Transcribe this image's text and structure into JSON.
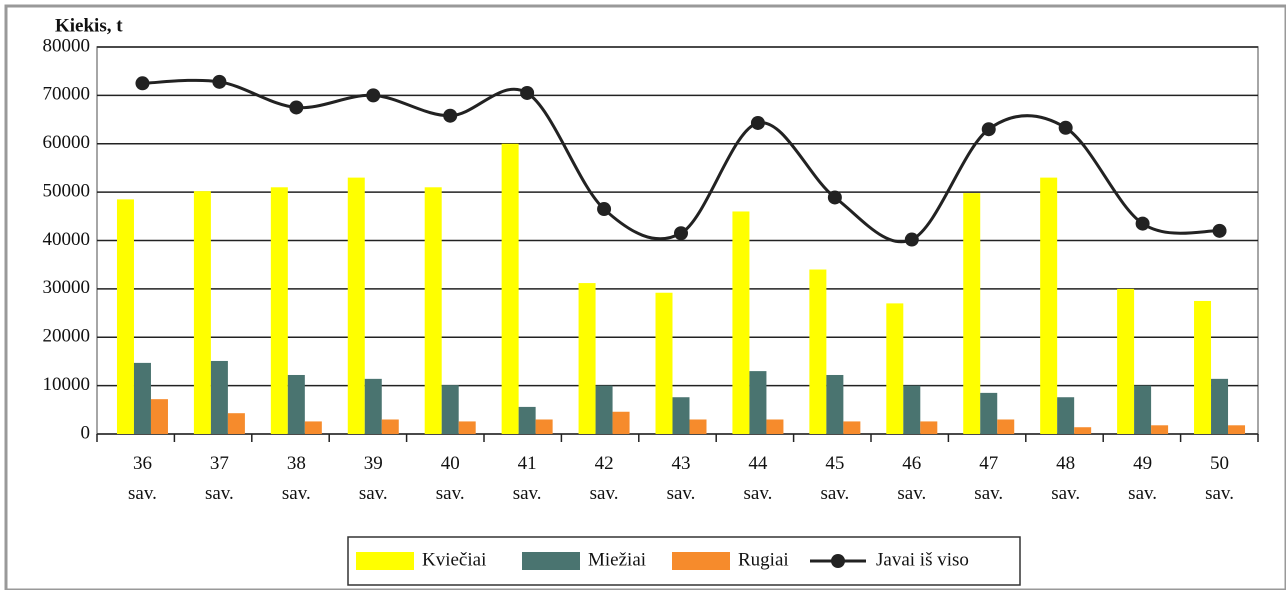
{
  "chart_data": {
    "type": "bar",
    "y_label": "Kiekis, t",
    "categories": [
      "36 sav.",
      "37 sav.",
      "38 sav.",
      "39 sav.",
      "40 sav.",
      "41 sav.",
      "42 sav.",
      "43 sav.",
      "44 sav.",
      "45 sav.",
      "46 sav.",
      "47 sav.",
      "48 sav.",
      "49 sav.",
      "50 sav."
    ],
    "series": [
      {
        "name": "Kviečiai",
        "color": "#ffff00",
        "type": "bar",
        "values": [
          48500,
          50200,
          51000,
          53000,
          51000,
          60000,
          31200,
          29200,
          46000,
          34000,
          27000,
          49800,
          53000,
          30000,
          27500
        ]
      },
      {
        "name": "Miežiai",
        "color": "#4a7470",
        "type": "bar",
        "values": [
          14700,
          15100,
          12200,
          11400,
          10100,
          5600,
          10000,
          7600,
          13000,
          12200,
          10000,
          8500,
          7600,
          10000,
          11400
        ]
      },
      {
        "name": "Rugiai",
        "color": "#f68b2c",
        "type": "bar",
        "values": [
          7200,
          4300,
          2600,
          3000,
          2600,
          3000,
          4600,
          3000,
          3000,
          2600,
          2600,
          3000,
          1400,
          1800,
          1800
        ]
      },
      {
        "name": "Javai iš viso",
        "color": "#222222",
        "type": "line",
        "values": [
          72500,
          72800,
          67500,
          70000,
          65800,
          70500,
          46500,
          41500,
          64300,
          48900,
          40200,
          63000,
          63300,
          43500,
          42000
        ]
      }
    ],
    "ylim": [
      0,
      80000
    ],
    "yticks": [
      0,
      10000,
      20000,
      30000,
      40000,
      50000,
      60000,
      70000,
      80000
    ],
    "grid": true,
    "legend": "bottom"
  }
}
